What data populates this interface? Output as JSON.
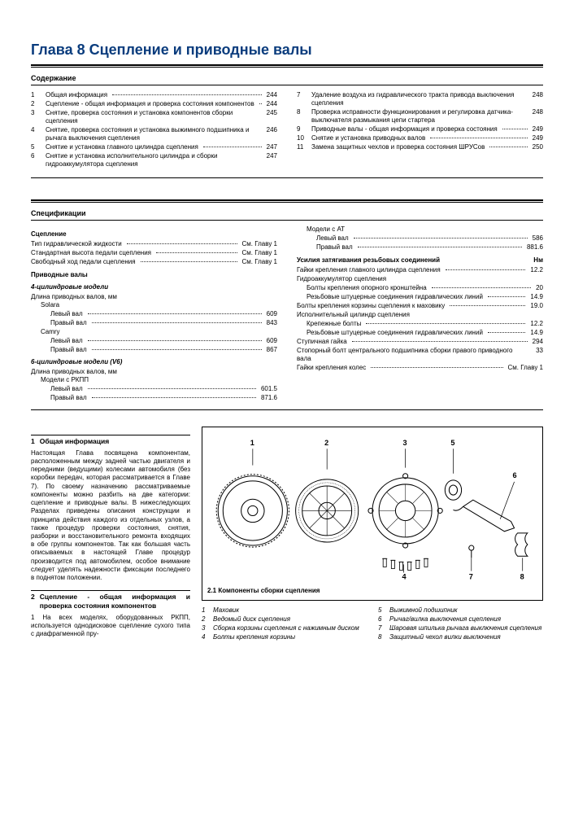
{
  "chapter_title": "Глава 8 Сцепление и приводные валы",
  "contents_heading": "Содержание",
  "specs_heading": "Спецификации",
  "toc_left": [
    {
      "n": "1",
      "label": "Общая информация",
      "page": "244"
    },
    {
      "n": "2",
      "label": "Сцепление - общая информация и проверка состояния компонентов",
      "page": "244"
    },
    {
      "n": "3",
      "label": "Снятие, проверка состояния и установка компонентов сборки сцепления",
      "page": "245"
    },
    {
      "n": "4",
      "label": "Снятие, проверка состояния и установка выжимного подшипника и рычага выключения сцепления",
      "page": "246"
    },
    {
      "n": "5",
      "label": "Снятие и установка главного цилиндра сцепления",
      "page": "247"
    },
    {
      "n": "6",
      "label": "Снятие и установка исполнительного цилиндра и сборки гидроаккумулятора сцепления",
      "page": "247"
    }
  ],
  "toc_right": [
    {
      "n": "7",
      "label": "Удаление воздуха из гидравлического тракта привода выключения сцепления",
      "page": "248"
    },
    {
      "n": "8",
      "label": "Проверка исправности функционирования и регулировка датчика-выключателя размыкания цепи стартера",
      "page": "248"
    },
    {
      "n": "9",
      "label": "Приводные валы - общая информация и проверка состояния",
      "page": "249"
    },
    {
      "n": "10",
      "label": "Снятие и установка приводных валов",
      "page": "249"
    },
    {
      "n": "11",
      "label": "Замена защитных чехлов и проверка состояния ШРУСов",
      "page": "250"
    }
  ],
  "specs_left": {
    "h_clutch": "Сцепление",
    "clutch_lines": [
      {
        "label": "Тип гидравлической жидкости",
        "val": "См. Главу 1"
      },
      {
        "label": "Стандартная высота педали сцепления",
        "val": "См. Главу 1"
      },
      {
        "label": "Свободный ход педали сцепления",
        "val": "См. Главу 1"
      }
    ],
    "h_drive": "Приводные валы",
    "h_4cyl": "4-цилиндровые модели",
    "len_label": "Длина приводных валов, мм",
    "solara": "Solara",
    "solara_lines": [
      {
        "label": "Левый вал",
        "val": "609"
      },
      {
        "label": "Правый вал",
        "val": "843"
      }
    ],
    "camry": "Camry",
    "camry_lines": [
      {
        "label": "Левый вал",
        "val": "609"
      },
      {
        "label": "Правый вал",
        "val": "867"
      }
    ],
    "h_6cyl": "6-цилиндровые модели (V6)",
    "v6_lines": [
      {
        "label": "Левый вал",
        "val": "601.5"
      },
      {
        "label": "Правый вал",
        "val": "871.6"
      }
    ],
    "rkpp_label": "Модели с РКПП"
  },
  "specs_right": {
    "at_label": "Модели с АТ",
    "at_lines": [
      {
        "label": "Левый вал",
        "val": "586"
      },
      {
        "label": "Правый вал",
        "val": "881.6"
      }
    ],
    "torque_head": "Усилия затягивания резьбовых соединений",
    "torque_unit": "Нм",
    "torque_lines": [
      {
        "label": "Гайки крепления главного цилиндра сцепления",
        "val": "12.2",
        "indent": 0
      },
      {
        "label": "Гидроаккумулятор сцепления",
        "val": "",
        "indent": 0,
        "nodots": true
      },
      {
        "label": "Болты крепления опорного кронштейна",
        "val": "20",
        "indent": 1
      },
      {
        "label": "Резьбовые штуцерные соединения гидравлических линий",
        "val": "14.9",
        "indent": 1
      },
      {
        "label": "Болты крепления корзины сцепления к маховику",
        "val": "19.0",
        "indent": 0
      },
      {
        "label": "Исполнительный цилиндр сцепления",
        "val": "",
        "indent": 0,
        "nodots": true
      },
      {
        "label": "Крепежные болты",
        "val": "12.2",
        "indent": 1
      },
      {
        "label": "Резьбовые штуцерные соединения гидравлических линий",
        "val": "14.9",
        "indent": 1
      },
      {
        "label": "Ступичная гайка",
        "val": "294",
        "indent": 0
      },
      {
        "label": "Стопорный болт центрального подшипника сборки правого приводного вала",
        "val": "33",
        "indent": 0
      },
      {
        "label": "Гайки крепления колес",
        "val": "См. Главу 1",
        "indent": 0
      }
    ]
  },
  "sect1": {
    "num": "1",
    "title": "Общая информация",
    "body": "Настоящая Глава посвящена компонентам, расположенным между задней частью двигателя и передними (ведущими) колесами автомобиля (без коробки передач, которая рассматривается в Главе 7). По своему назначению рассматриваемые компоненты можно разбить на две категории: сцепление и приводные валы. В нижеследующих Разделах приведены описания конструкции и принципа действия каждого из отдельных узлов, а также процедур проверки состояния, снятия, разборки и восстановительного ремонта входящих в обе группы компонентов. Так как большая часть описываемых в настоящей Главе процедур производится под автомобилем, особое внимание следует уделять надежности фиксации последнего в поднятом положении."
  },
  "sect2": {
    "num": "2",
    "title": "Сцепление - общая информация и проверка состояния компонентов",
    "body": "1  На всех моделях, оборудованных РКПП, используется однодисковое сцепление сухого типа с диафрагменной пру-"
  },
  "fig": {
    "caption": "2.1 Компоненты сборки сцепления",
    "callouts": [
      "1",
      "2",
      "3",
      "4",
      "5",
      "6",
      "7",
      "8"
    ]
  },
  "legend_left": [
    {
      "n": "1",
      "t": "Маховик"
    },
    {
      "n": "2",
      "t": "Ведомый диск сцепления"
    },
    {
      "n": "3",
      "t": "Сборка корзины сцепления с нажимным диском"
    },
    {
      "n": "4",
      "t": "Болты крепления корзины"
    }
  ],
  "legend_right": [
    {
      "n": "5",
      "t": "Выжимной подшипник"
    },
    {
      "n": "6",
      "t": "Рычаг/вилка выключения сцепления"
    },
    {
      "n": "7",
      "t": "Шаровая шпилька рычага выключения сцепления"
    },
    {
      "n": "8",
      "t": "Защитный чехол вилки выключения"
    }
  ]
}
